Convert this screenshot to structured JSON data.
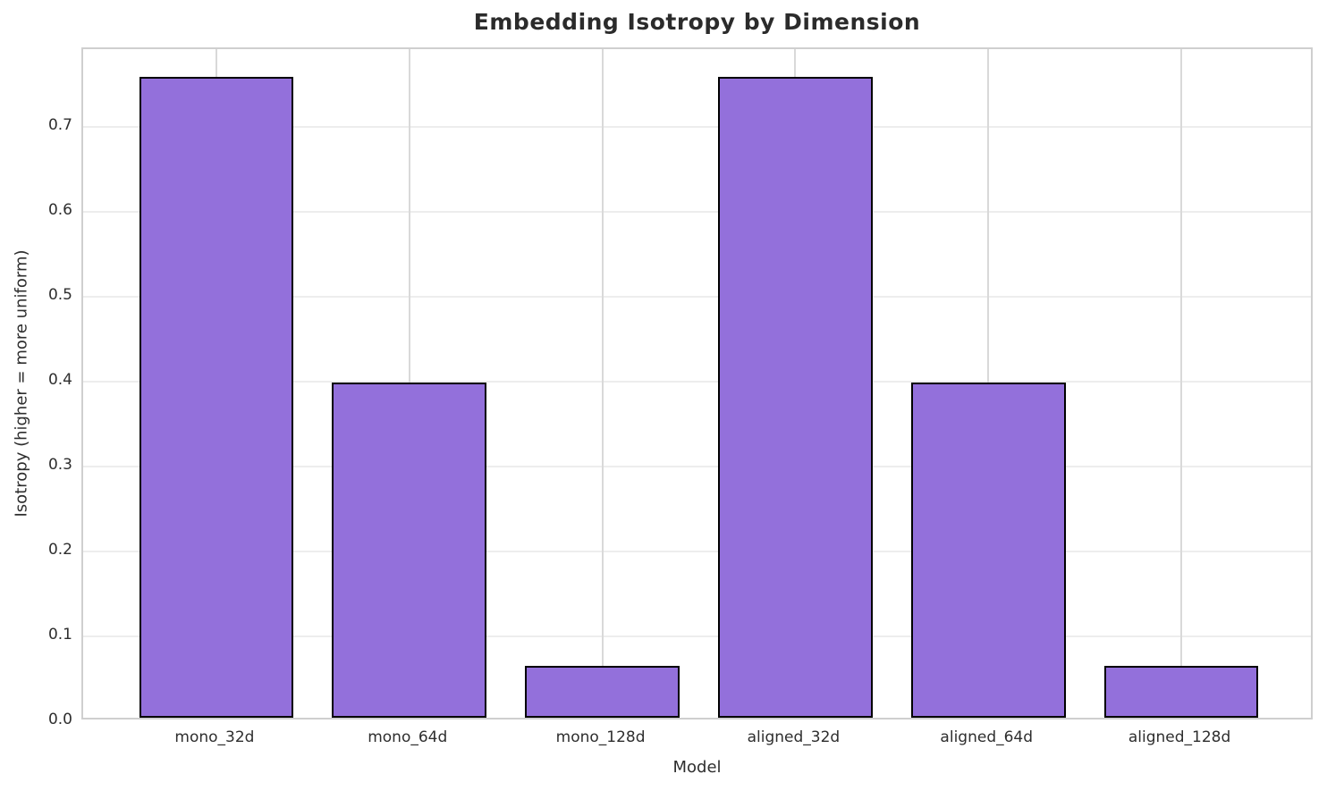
{
  "chart_data": {
    "type": "bar",
    "title": "Embedding Isotropy by Dimension",
    "xlabel": "Model",
    "ylabel": "Isotropy (higher = more uniform)",
    "categories": [
      "mono_32d",
      "mono_64d",
      "mono_128d",
      "aligned_32d",
      "aligned_64d",
      "aligned_128d"
    ],
    "values": [
      0.755,
      0.395,
      0.061,
      0.755,
      0.395,
      0.061
    ],
    "yticks": [
      0.0,
      0.1,
      0.2,
      0.3,
      0.4,
      0.5,
      0.6,
      0.7
    ],
    "ylim": [
      0,
      0.7915
    ],
    "bar_width_frac": 0.8,
    "x_edge_margin": 0.69,
    "grid": true,
    "legend": null,
    "colors": {
      "bar_fill": "#9370DB",
      "bar_edge": "#000000",
      "grid_horizontal": "#ededed",
      "grid_vertical": "#d9d9d9",
      "spine": "#cfcfcf",
      "text": "#2e2e2e",
      "title": "#2b2b2b",
      "background": "#ffffff"
    }
  }
}
